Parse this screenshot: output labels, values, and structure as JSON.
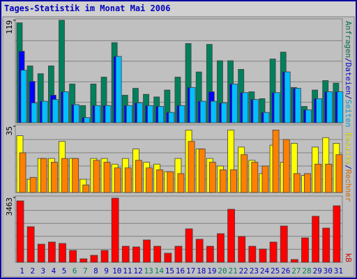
{
  "chart_data": [
    {
      "type": "bar",
      "title": "Tages-Statistik im Monat Mai 2006",
      "categories": [
        "1",
        "2",
        "3",
        "4",
        "5",
        "6",
        "7",
        "8",
        "9",
        "10",
        "11",
        "12",
        "13",
        "14",
        "15",
        "16",
        "17",
        "18",
        "19",
        "20",
        "21",
        "22",
        "23",
        "24",
        "25",
        "26",
        "27",
        "28",
        "29",
        "30",
        "31"
      ],
      "ylim": [
        0,
        119
      ],
      "yticks": [
        119
      ],
      "legend_separator": "/",
      "series": [
        {
          "name": "Anfragen",
          "color": "#00805c",
          "values": [
            116,
            66,
            57,
            66,
            119,
            45,
            20,
            45,
            53,
            93,
            32,
            40,
            33,
            30,
            38,
            53,
            92,
            59,
            91,
            72,
            72,
            62,
            36,
            28,
            74,
            82,
            41,
            19,
            38,
            49,
            46
          ]
        },
        {
          "name": "Dateien",
          "color": "#0000ff",
          "values": [
            83,
            48,
            25,
            32,
            36,
            21,
            6,
            20,
            20,
            77,
            20,
            23,
            20,
            19,
            12,
            20,
            41,
            25,
            36,
            23,
            45,
            35,
            27,
            12,
            35,
            59,
            40,
            15,
            28,
            36,
            36
          ]
        },
        {
          "name": "Seiten",
          "color": "#00c0ff",
          "values": [
            61,
            23,
            25,
            27,
            36,
            21,
            6,
            20,
            20,
            77,
            20,
            23,
            20,
            19,
            12,
            20,
            41,
            25,
            25,
            23,
            45,
            35,
            27,
            12,
            35,
            59,
            40,
            15,
            28,
            36,
            36
          ]
        }
      ]
    },
    {
      "type": "bar",
      "categories": [
        "1",
        "2",
        "3",
        "4",
        "5",
        "6",
        "7",
        "8",
        "9",
        "10",
        "11",
        "12",
        "13",
        "14",
        "15",
        "16",
        "17",
        "18",
        "19",
        "20",
        "21",
        "22",
        "23",
        "24",
        "25",
        "26",
        "27",
        "28",
        "29",
        "30",
        "31"
      ],
      "ylim": [
        0,
        35
      ],
      "yticks": [
        35
      ],
      "legend_separator": "/",
      "series": [
        {
          "name": "Besuche",
          "color": "#ffff00",
          "values": [
            30,
            7,
            18,
            18,
            27,
            18,
            7,
            18,
            18,
            15,
            18,
            23,
            16,
            15,
            11,
            18,
            33,
            23,
            18,
            14,
            33,
            24,
            17,
            10,
            25,
            16,
            26,
            9,
            24,
            29,
            26
          ]
        },
        {
          "name": "Rechner",
          "color": "#ff8000",
          "values": [
            21,
            8,
            18,
            16,
            18,
            18,
            4,
            17,
            16,
            13,
            13,
            17,
            13,
            12,
            11,
            10,
            27,
            23,
            16,
            12,
            12,
            20,
            16,
            14,
            33,
            28,
            10,
            10,
            15,
            15,
            20
          ]
        }
      ]
    },
    {
      "type": "bar",
      "categories": [
        "1",
        "2",
        "3",
        "4",
        "5",
        "6",
        "7",
        "8",
        "9",
        "10",
        "11",
        "12",
        "13",
        "14",
        "15",
        "16",
        "17",
        "18",
        "19",
        "20",
        "21",
        "22",
        "23",
        "24",
        "25",
        "26",
        "27",
        "28",
        "29",
        "30",
        "31"
      ],
      "category_label_colors": [
        "#0000c0",
        "#0000c0",
        "#0000c0",
        "#0000c0",
        "#0000c0",
        "#00805c",
        "#00805c",
        "#0000c0",
        "#0000c0",
        "#0000c0",
        "#0000c0",
        "#0000c0",
        "#00805c",
        "#00805c",
        "#0000c0",
        "#0000c0",
        "#0000c0",
        "#0000c0",
        "#0000c0",
        "#00805c",
        "#00805c",
        "#0000c0",
        "#0000c0",
        "#0000c0",
        "#0000c0",
        "#0000c0",
        "#00805c",
        "#00805c",
        "#0000c0",
        "#0000c0",
        "#0000c0"
      ],
      "ylim": [
        0,
        3463
      ],
      "yticks": [
        3463
      ],
      "series": [
        {
          "name": "kB",
          "color": "#ff0000",
          "values": [
            3277,
            1899,
            968,
            1080,
            1005,
            633,
            186,
            372,
            633,
            3426,
            856,
            819,
            1192,
            856,
            484,
            856,
            1787,
            1229,
            856,
            1527,
            2830,
            1378,
            856,
            707,
            1080,
            1936,
            149,
            1303,
            2458,
            1825,
            3016
          ]
        }
      ]
    }
  ]
}
